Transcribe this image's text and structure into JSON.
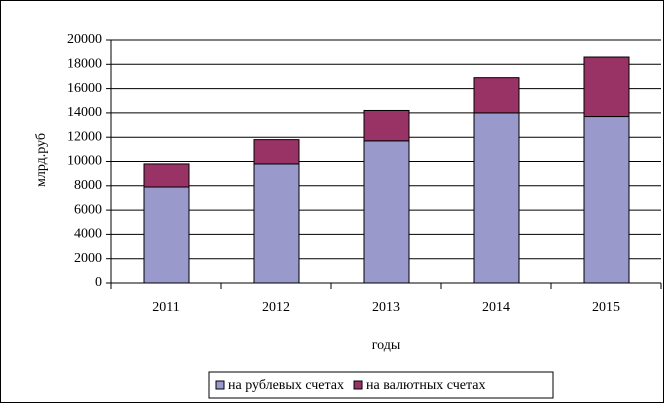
{
  "chart_data": {
    "type": "stacked_bar",
    "categories": [
      "2011",
      "2012",
      "2013",
      "2014",
      "2015"
    ],
    "series": [
      {
        "name": "на рублевых счетах",
        "color": "#9999cc",
        "values": [
          7900,
          9800,
          11700,
          14000,
          13700
        ]
      },
      {
        "name": "на валютных счетах",
        "color": "#993366",
        "values": [
          1900,
          2000,
          2500,
          2900,
          4900
        ]
      }
    ],
    "ylabel": "млрд.руб",
    "xlabel": "годы",
    "ylim": [
      0,
      20000
    ],
    "yticks": [
      0,
      2000,
      4000,
      6000,
      8000,
      10000,
      12000,
      14000,
      16000,
      18000,
      20000
    ],
    "grid": true,
    "legend": "bottom"
  }
}
